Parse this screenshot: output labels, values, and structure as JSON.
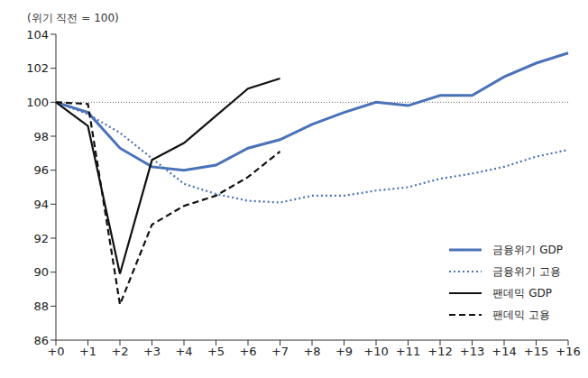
{
  "chart_data": {
    "type": "line",
    "y_label": "(위기 직전 = 100)",
    "categories": [
      "+0",
      "+1",
      "+2",
      "+3",
      "+4",
      "+5",
      "+6",
      "+7",
      "+8",
      "+9",
      "+10",
      "+11",
      "+12",
      "+13",
      "+14",
      "+15",
      "+16"
    ],
    "series": [
      {
        "name": "금융위기 GDP",
        "color": "#4a72b8",
        "line_style": "solid",
        "values": [
          100,
          99.4,
          97.3,
          96.2,
          96.0,
          96.3,
          97.3,
          97.8,
          98.7,
          99.4,
          100.0,
          99.8,
          100.4,
          100.4,
          101.5,
          102.3,
          102.9
        ]
      },
      {
        "name": "금융위기 고용",
        "color": "#4a72b8",
        "line_style": "dotted",
        "values": [
          100,
          99.3,
          98.2,
          96.7,
          95.2,
          94.6,
          94.2,
          94.1,
          94.5,
          94.5,
          94.8,
          95.0,
          95.5,
          95.8,
          96.2,
          96.8,
          97.2
        ]
      },
      {
        "name": "팬데믹 GDP",
        "color": "#111111",
        "line_style": "solid",
        "values": [
          100,
          98.6,
          89.9,
          96.6,
          97.6,
          99.2,
          100.8,
          101.4,
          null,
          null,
          null,
          null,
          null,
          null,
          null,
          null,
          null
        ]
      },
      {
        "name": "팬데믹 고용",
        "color": "#111111",
        "line_style": "dashed",
        "values": [
          100,
          99.9,
          88.1,
          92.8,
          93.9,
          94.5,
          95.6,
          97.1,
          null,
          null,
          null,
          null,
          null,
          null,
          null,
          null,
          null
        ]
      }
    ],
    "ylim": [
      86,
      104
    ],
    "yticks": [
      86,
      88,
      90,
      92,
      94,
      96,
      98,
      100,
      102,
      104
    ],
    "baseline": 100,
    "grid": false,
    "legend": "lower right"
  }
}
